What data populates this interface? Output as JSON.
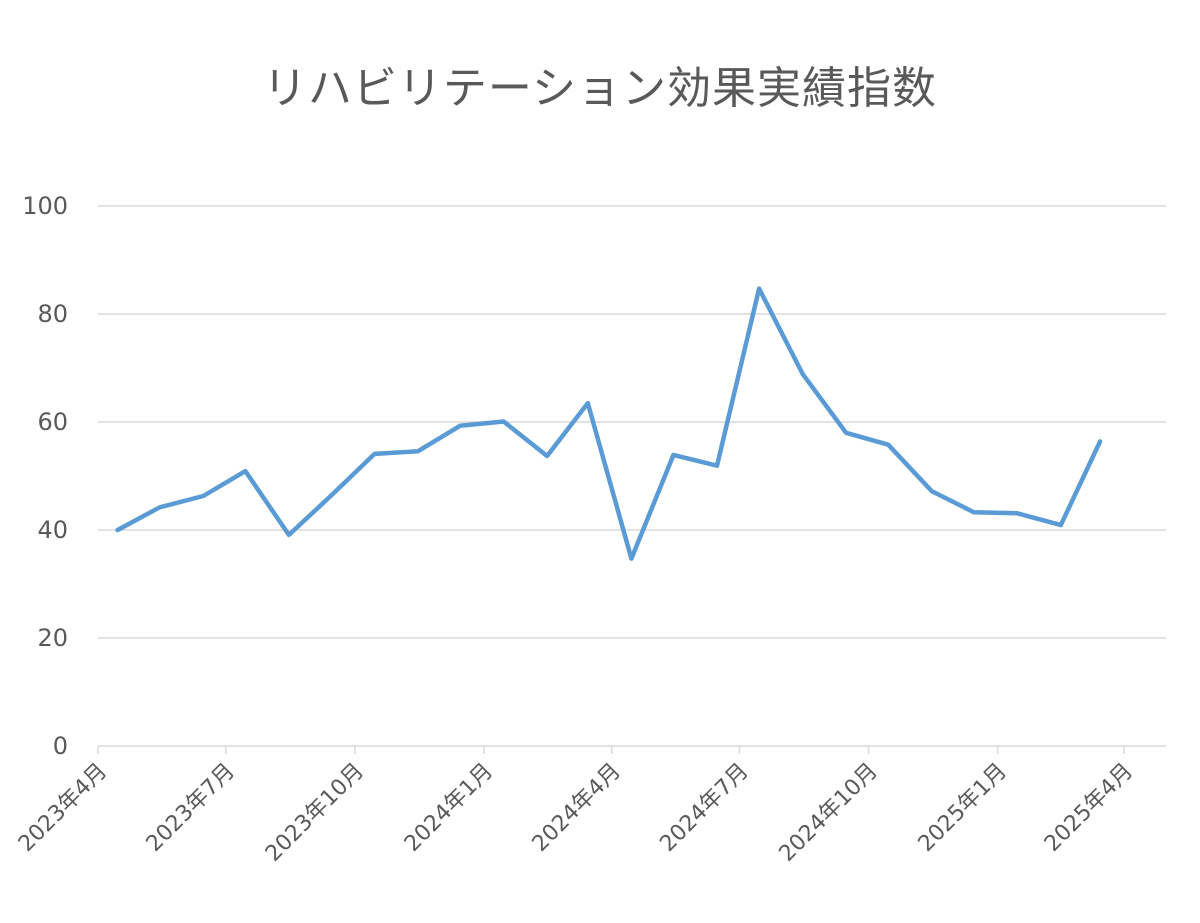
{
  "chart_data": {
    "type": "line",
    "title": "リハビリテーション効果実績指数",
    "xlabel": "",
    "ylabel": "",
    "ylim": [
      0,
      100
    ],
    "y_ticks": [
      0,
      20,
      40,
      60,
      80,
      100
    ],
    "x_tick_labels": [
      "2023年4月",
      "2023年7月",
      "2023年10月",
      "2024年1月",
      "2024年4月",
      "2024年7月",
      "2024年10月",
      "2025年1月",
      "2025年4月"
    ],
    "x": [
      "2023-04-15",
      "2023-05-15",
      "2023-06-15",
      "2023-07-15",
      "2023-08-15",
      "2023-09-15",
      "2023-10-15",
      "2023-11-15",
      "2023-12-15",
      "2024-01-15",
      "2024-02-15",
      "2024-03-15",
      "2024-04-15",
      "2024-05-15",
      "2024-06-15",
      "2024-07-15",
      "2024-08-15",
      "2024-09-15",
      "2024-10-15",
      "2024-11-15",
      "2024-12-15",
      "2025-01-15",
      "2025-02-15",
      "2025-03-15"
    ],
    "series": [
      {
        "name": "",
        "values": [
          40.0,
          44.2,
          46.3,
          50.9,
          39.1,
          46.6,
          54.1,
          54.6,
          59.3,
          60.1,
          53.7,
          63.5,
          34.7,
          53.9,
          51.9,
          84.7,
          68.9,
          58.0,
          55.8,
          47.2,
          43.3,
          43.1,
          40.9,
          56.4
        ]
      }
    ],
    "grid": true,
    "legend": "none",
    "colors": {
      "line": "#5b9bd5",
      "grid": "#d9d9d9",
      "axis": "#d9d9d9",
      "text": "#595959"
    }
  }
}
